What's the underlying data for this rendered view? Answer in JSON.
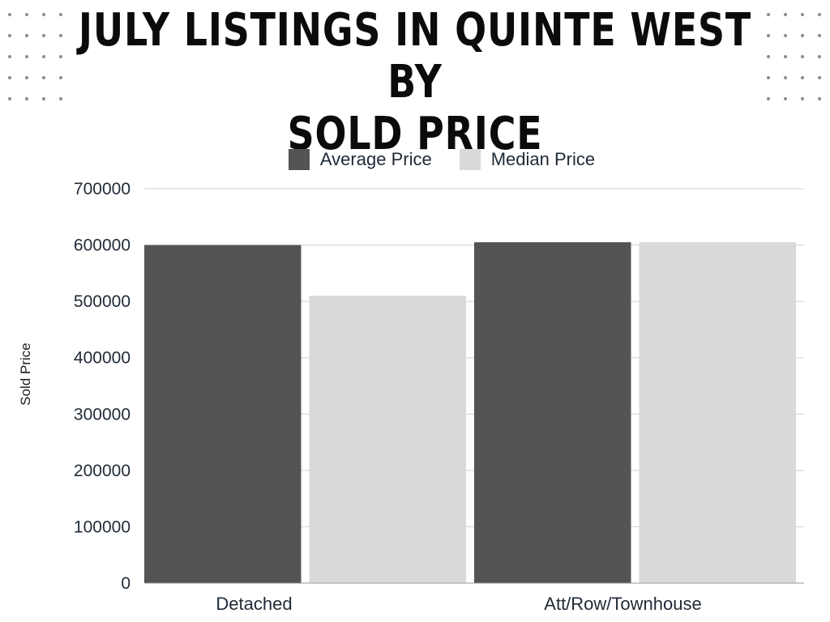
{
  "chart_data": {
    "type": "bar",
    "title_lines": [
      "JULY LISTINGS IN QUINTE WEST BY",
      "SOLD PRICE"
    ],
    "ylabel": "Sold Price",
    "xlabel": "",
    "categories": [
      "Detached",
      "Att/Row/Townhouse"
    ],
    "series": [
      {
        "name": "Average Price",
        "values": [
          600000,
          605000
        ],
        "color": "#545454"
      },
      {
        "name": "Median Price",
        "values": [
          510000,
          605000
        ],
        "color": "#d9d9d9"
      }
    ],
    "ylim": [
      0,
      700000
    ],
    "yticks": [
      "0",
      "100000",
      "200000",
      "300000",
      "400000",
      "500000",
      "600000",
      "700000"
    ],
    "grid": true,
    "legend": "top"
  },
  "colors": {
    "title": "#0b0b0b",
    "grid": "#d0d0d0",
    "dots": "#8c8c8c"
  }
}
